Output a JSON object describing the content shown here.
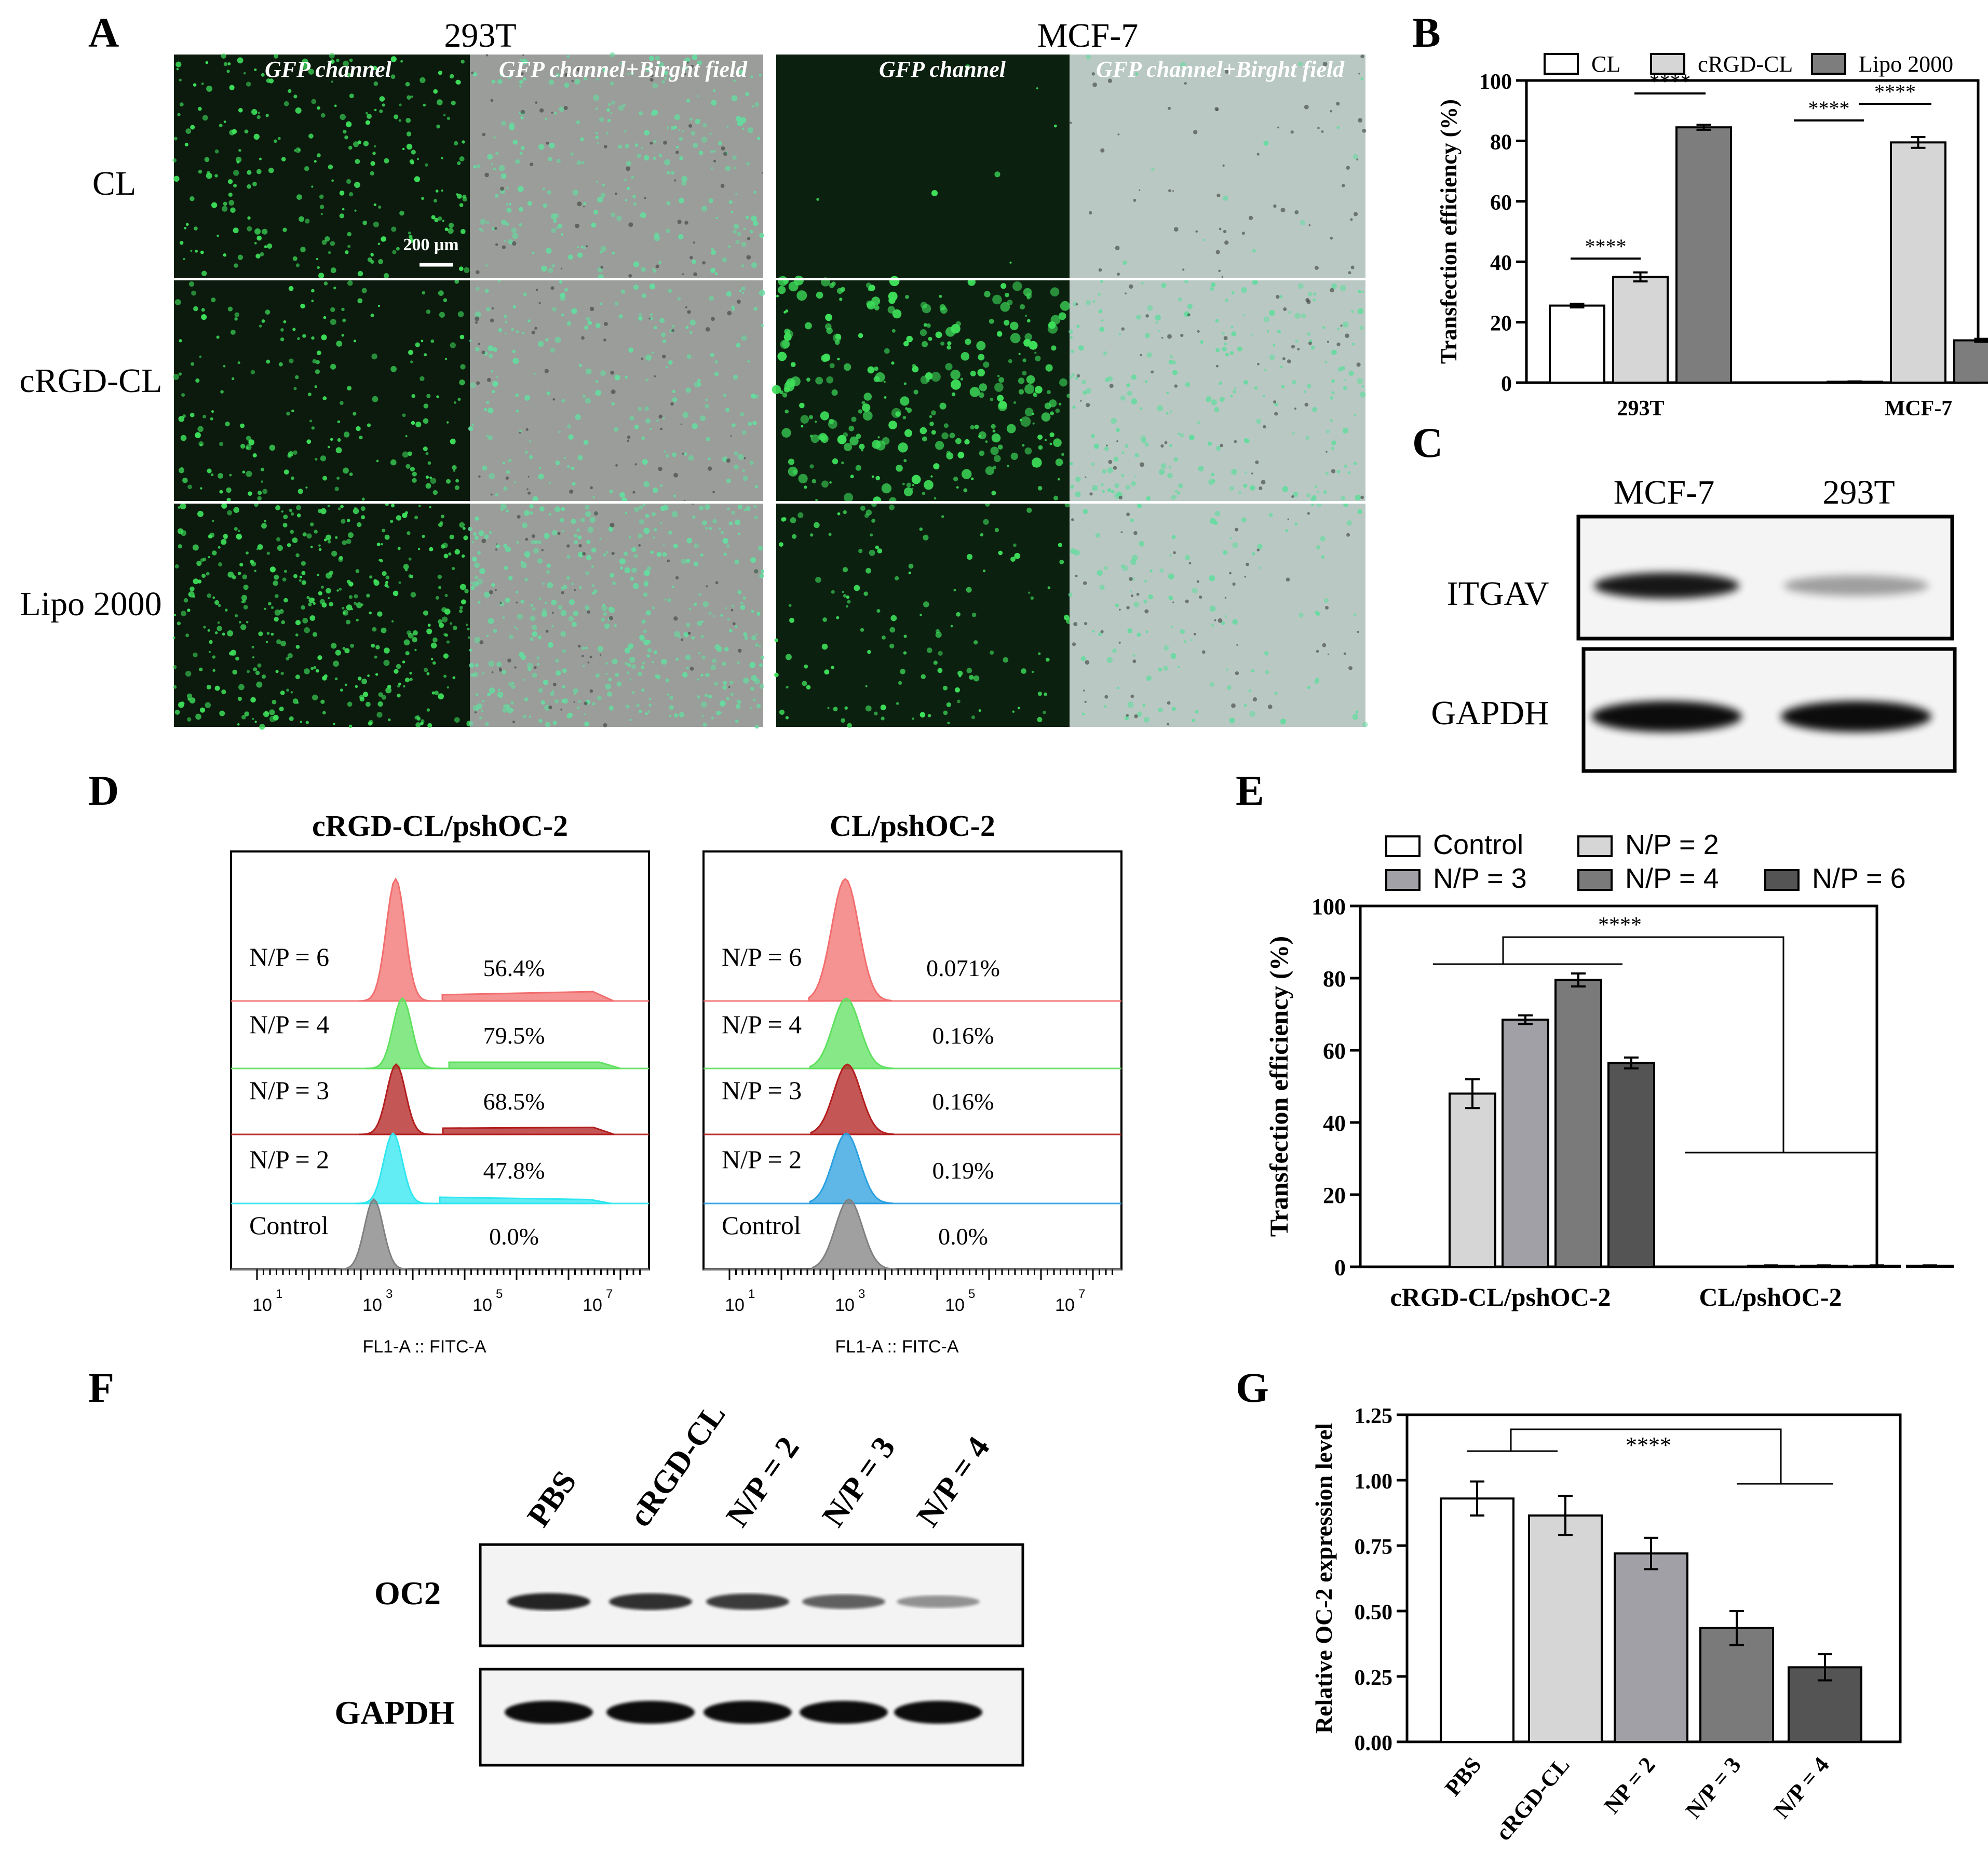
{
  "panel_labels": {
    "a": "A",
    "b": "B",
    "c": "C",
    "d": "D",
    "e": "E",
    "f": "F",
    "g": "G"
  },
  "micro": {
    "cell_lines": [
      "293T",
      "MCF-7"
    ],
    "channel_labels": [
      "GFP channel",
      "GFP channel+Birght field"
    ],
    "rows": [
      "CL",
      "cRGD-CL",
      "Lipo 2000"
    ],
    "scale_bar": "200 μm"
  },
  "blot_c": {
    "lanes": [
      "MCF-7",
      "293T"
    ],
    "bands": [
      "ITGAV",
      "GAPDH"
    ],
    "itgav_intensity": [
      0.9,
      0.35
    ],
    "gapdh_intensity": [
      0.95,
      0.95
    ]
  },
  "flow": {
    "panels": [
      {
        "title": "cRGD-CL/pshOC-2",
        "rows": [
          {
            "label": "N/P = 6",
            "pct": "56.4%",
            "color": "#f26d6d"
          },
          {
            "label": "N/P = 4",
            "pct": "79.5%",
            "color": "#5fe05f"
          },
          {
            "label": "N/P = 3",
            "pct": "68.5%",
            "color": "#b21e1e"
          },
          {
            "label": "N/P = 2",
            "pct": "47.8%",
            "color": "#2ee6f0"
          },
          {
            "label": "Control",
            "pct": "0.0%",
            "color": "#808080"
          }
        ]
      },
      {
        "title": "CL/pshOC-2",
        "rows": [
          {
            "label": "N/P = 6",
            "pct": "0.071%",
            "color": "#f26d6d"
          },
          {
            "label": "N/P = 4",
            "pct": "0.16%",
            "color": "#5fe05f"
          },
          {
            "label": "N/P = 3",
            "pct": "0.16%",
            "color": "#b21e1e"
          },
          {
            "label": "N/P = 2",
            "pct": "0.19%",
            "color": "#2a9fe0"
          },
          {
            "label": "Control",
            "pct": "0.0%",
            "color": "#808080"
          }
        ]
      }
    ],
    "xtick_base": "10",
    "xtick_exps": [
      "1",
      "3",
      "5",
      "7"
    ],
    "xlabel": "FL1-A :: FITC-A"
  },
  "blot_f": {
    "lanes": [
      "PBS",
      "cRGD-CL",
      "N/P = 2",
      "N/P = 3",
      "N/P = 4"
    ],
    "bands": [
      "OC2",
      "GAPDH"
    ],
    "oc2_intensity": [
      0.85,
      0.8,
      0.75,
      0.6,
      0.4
    ],
    "gapdh_intensity": [
      0.95,
      0.95,
      0.95,
      0.95,
      0.95
    ]
  },
  "chart_data": [
    {
      "panel": "B",
      "type": "bar",
      "categories": [
        "293T",
        "MCF-7"
      ],
      "series": [
        {
          "name": "CL",
          "values": [
            25.5,
            0.3
          ],
          "errors": [
            0.6,
            0.1
          ],
          "color": "#ffffff"
        },
        {
          "name": "cRGD-CL",
          "values": [
            35,
            79.5
          ],
          "errors": [
            1.5,
            1.8
          ],
          "color": "#d6d6d6"
        },
        {
          "name": "Lipo 2000",
          "values": [
            84.5,
            14
          ],
          "errors": [
            0.8,
            0.5
          ],
          "color": "#7d7d7d"
        }
      ],
      "ylabel": "Transfection efficiency (%)",
      "ylim": [
        0,
        100
      ],
      "yticks": [
        "0",
        "20",
        "40",
        "60",
        "80",
        "100"
      ],
      "significance": [
        "****",
        "****",
        "****",
        "****"
      ]
    },
    {
      "panel": "E",
      "type": "bar",
      "categories": [
        "cRGD-CL/pshOC-2",
        "CL/pshOC-2"
      ],
      "series": [
        {
          "name": "Control",
          "values": [
            0,
            0
          ],
          "errors": [
            0,
            0
          ],
          "color": "#ffffff"
        },
        {
          "name": "N/P = 2",
          "values": [
            48,
            0.3
          ],
          "errors": [
            4,
            0.1
          ],
          "color": "#d6d6d6"
        },
        {
          "name": "N/P = 3",
          "values": [
            68.5,
            0.3
          ],
          "errors": [
            1.2,
            0.1
          ],
          "color": "#a0a0a6"
        },
        {
          "name": "N/P = 4",
          "values": [
            79.5,
            0.3
          ],
          "errors": [
            1.8,
            0.1
          ],
          "color": "#7a7a7a"
        },
        {
          "name": "N/P = 6",
          "values": [
            56.5,
            0.3
          ],
          "errors": [
            1.5,
            0.1
          ],
          "color": "#545454"
        }
      ],
      "ylabel": "Transfection efficiency (%)",
      "ylim": [
        0,
        100
      ],
      "yticks": [
        "0",
        "20",
        "40",
        "60",
        "80",
        "100"
      ],
      "significance": [
        "****"
      ]
    },
    {
      "panel": "G",
      "type": "bar",
      "categories": [
        "PBS",
        "cRGD-CL",
        "NP = 2",
        "N/P = 3",
        "N/P = 4"
      ],
      "values": [
        0.93,
        0.865,
        0.72,
        0.435,
        0.285
      ],
      "errors": [
        0.065,
        0.075,
        0.06,
        0.065,
        0.05
      ],
      "colors": [
        "#ffffff",
        "#d6d6d6",
        "#a0a0a6",
        "#7a7a7a",
        "#545454"
      ],
      "ylabel": "Relative OC-2 expression level",
      "ylim": [
        0,
        1.25
      ],
      "yticks": [
        "0.00",
        "0.25",
        "0.50",
        "0.75",
        "1.00",
        "1.25"
      ],
      "significance": [
        "****"
      ]
    }
  ]
}
